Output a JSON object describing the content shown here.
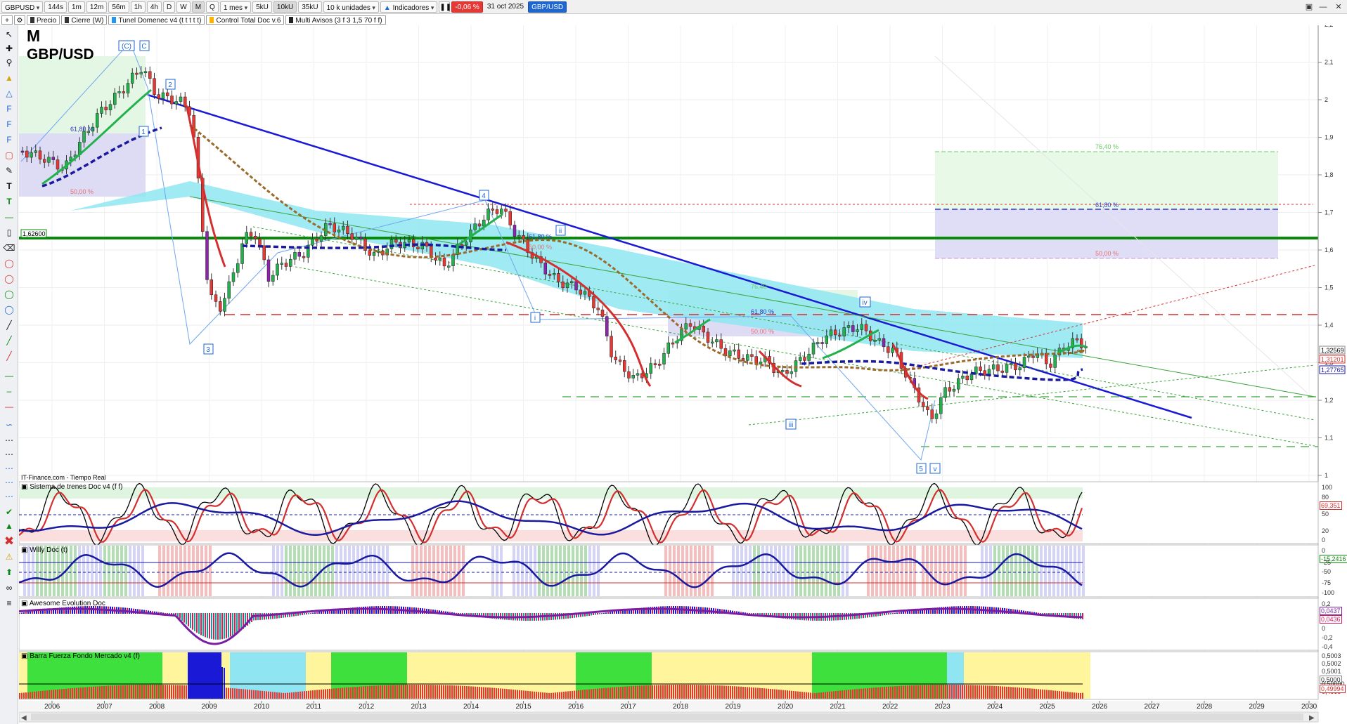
{
  "toolbar": {
    "symbol": "GBPUSD",
    "periods": [
      "144s",
      "1m",
      "12m",
      "56m",
      "1h",
      "4h",
      "D",
      "W",
      "M",
      "Q"
    ],
    "period_active": "M",
    "timeframe": "1 mes",
    "sizes": [
      "5kU",
      "10kU",
      "35kU"
    ],
    "size_active": "10kU",
    "units": "10 k unidades",
    "indicators_label": "Indicadores",
    "change": "-0,06 %",
    "date": "31 oct 2025",
    "pair_badge": "GBP/USD"
  },
  "overlays": [
    {
      "label": "Precio",
      "color": "#333333"
    },
    {
      "label": "Cierre (W)",
      "color": "#333333"
    },
    {
      "label": "Tunel Domenec v4 (t t t t t)",
      "color": "#2196f3"
    },
    {
      "label": "Control Total Doc v.6",
      "color": "#ffb300"
    },
    {
      "label": "Multi Avisos (3 f 3 1,5 70 f f)",
      "color": "#222222"
    }
  ],
  "chart": {
    "period_letter": "M",
    "pair": "GBP/USD",
    "source": "IT-Finance.com - Tiempo Real",
    "y_ticks": [
      "2,2",
      "2,1",
      "2",
      "1,9",
      "1,8",
      "1,7",
      "1,6",
      "1,5",
      "1,4",
      "1,3",
      "1,2",
      "1,1",
      "1"
    ],
    "level_label": "1,62600",
    "price_labels": [
      "1,32569",
      "1,31201",
      "1,27765"
    ],
    "years": [
      "2006",
      "2007",
      "2008",
      "2009",
      "2010",
      "2011",
      "2012",
      "2013",
      "2014",
      "2015",
      "2016",
      "2017",
      "2018",
      "2019",
      "2020",
      "2021",
      "2022",
      "2023",
      "2024",
      "2025",
      "2026",
      "2027",
      "2028",
      "2029",
      "2030"
    ],
    "wave_labels": [
      "(C)",
      "C",
      "2",
      "1",
      "3",
      "ii",
      "i",
      "iii",
      "iv",
      "5",
      "v"
    ],
    "wave_label_4": "4",
    "fib_labels_left": [
      "61,80 %",
      "50,00 %"
    ],
    "fib_labels_mid": [
      "61,80 %",
      "50,00 %"
    ],
    "fib_labels_2018": [
      "76,40",
      "61,80 %",
      "50,00 %"
    ],
    "fib_labels_right": [
      "76,40 %",
      "61,80 %",
      "50,00 %"
    ]
  },
  "panels": [
    {
      "title": "Sistema de trenes Doc v4 (f f)",
      "ticks": [
        "100",
        "80",
        "50",
        "20",
        "0"
      ],
      "value": "69,351"
    },
    {
      "title": "Willy Doc (t)",
      "ticks": [
        "0",
        "-25",
        "-50",
        "-75",
        "-100"
      ],
      "value": "-15,2416"
    },
    {
      "title": "Awesome Evolution Doc",
      "ticks": [
        "0,2",
        "0",
        "-0,2",
        "-0,4"
      ],
      "values": [
        "0,0437",
        "0,0436"
      ]
    },
    {
      "title": "Barra Fuerza Fondo Mercado v4 (f)",
      "ticks": [
        "0,5003",
        "0,5002",
        "0,5001",
        "0,50000",
        "0,4999"
      ],
      "values": [
        "0,5000",
        "0,49994"
      ]
    }
  ],
  "colors": {
    "bull": "#22b14c",
    "bear": "#e53935",
    "trend": "#1a1ad6",
    "level": "#0a8a0a",
    "cloud": "#7fe0f0",
    "negative": "#e53935",
    "badge": "#1e66d0"
  }
}
